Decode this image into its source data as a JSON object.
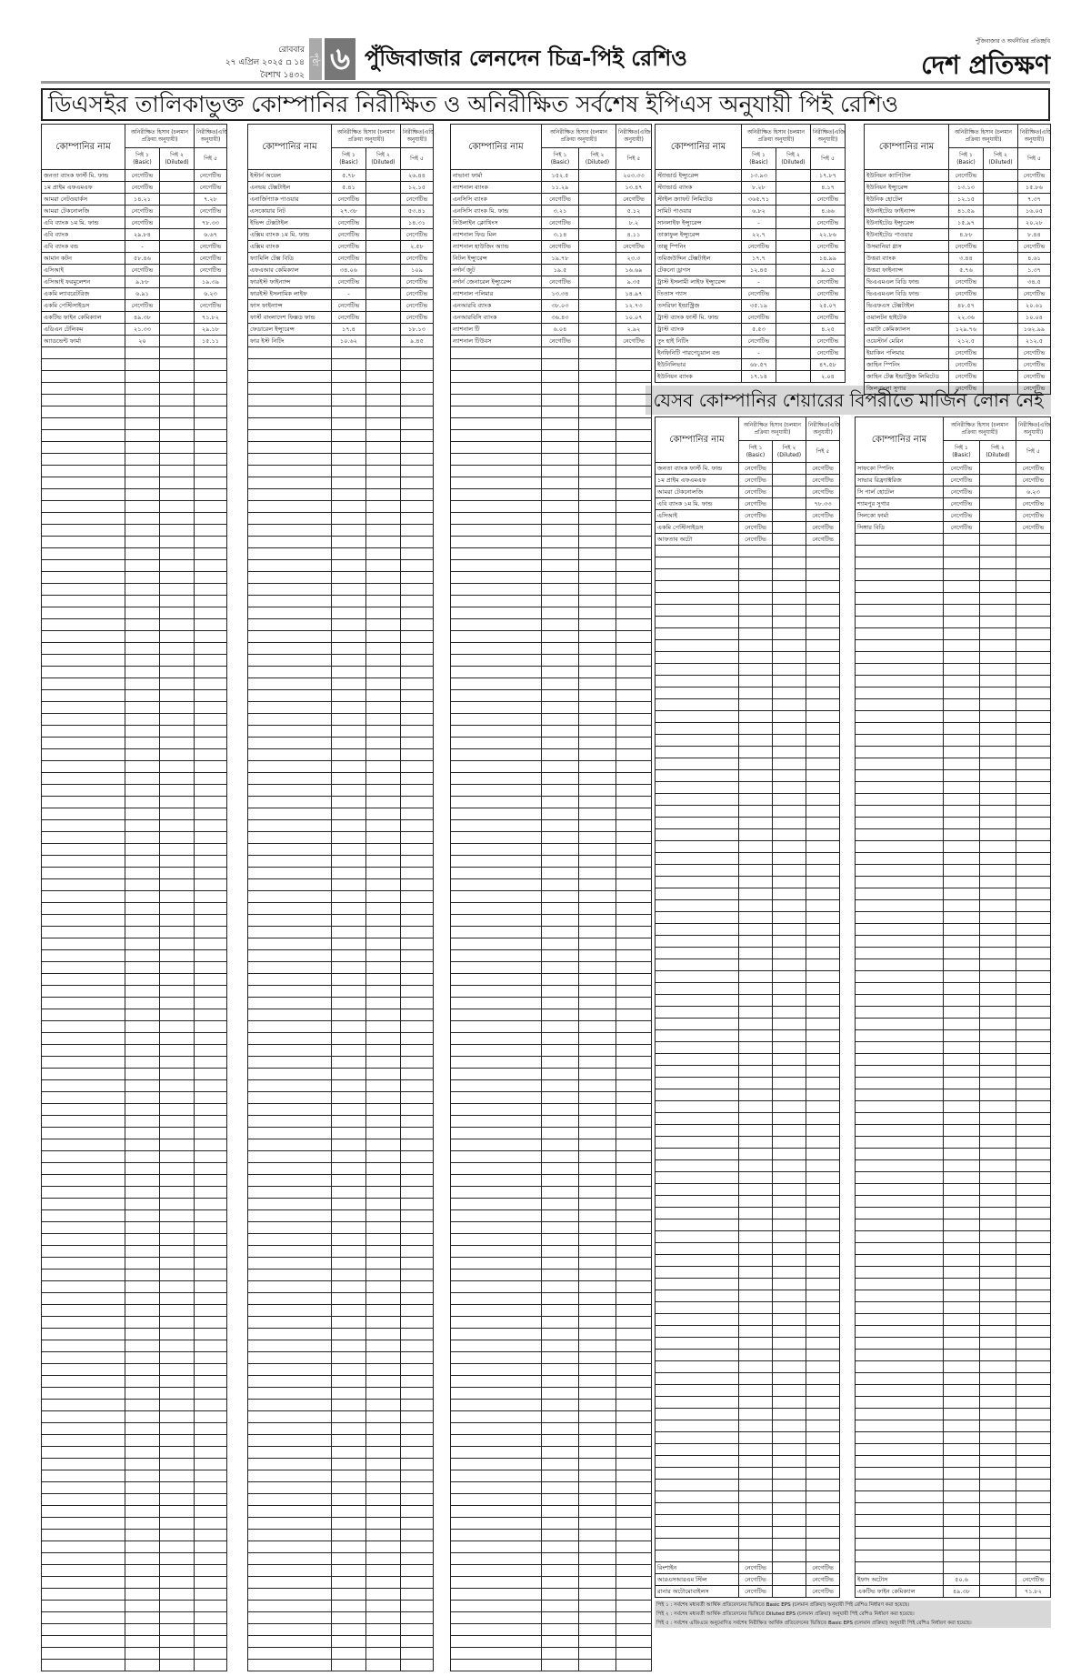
{
  "header": {
    "day": "রোববার",
    "date": "২৭ এপ্রিল ২০২৫ ▫ ১৪ বৈশাখ ১৪৩২",
    "page_word": "পৃষ্ঠা",
    "page_number": "৬",
    "section_title": "পুঁজিবাজার লেনদেন চিত্র-পিই রেশিও",
    "logo": "দেশ প্রতিক্ষণ",
    "tagline": "পুঁজিবাজার ও অর্থনীতির প্রতিচ্ছবি"
  },
  "main_title": "ডিএসইর তালিকাভুক্ত কোম্পানির নিরীক্ষিত ও অনিরীক্ষিত সর্বশেষ ইপিএস অনুযায়ী পিই রেশিও",
  "margin_title": "যেসব কোম্পানির শেয়ারের বিপরীতে মার্জিন লোন নেই",
  "table_header": {
    "company": "কোম্পানির নাম",
    "unaudited": "অনিরীক্ষিত হিসাব (চলমান প্রক্রিয়া অনুযায়ী)",
    "audited": "নিরীক্ষিত(এজিএম অনুযায়ী)",
    "pe1": "পিই ১ (Basic)",
    "pe2": "পিই ২ (Diluted)",
    "pe5": "পিই ৫"
  },
  "tables": [
    {
      "rows": [
        [
          "জনতা ব্যাংক ফার্স্ট মি. ফান্ড",
          "নেগেটিভ",
          "",
          "নেগেটিভ"
        ],
        [
          "১ম প্রাইম এফএমএফ",
          "নেগেটিভ",
          "",
          "নেগেটিভ"
        ],
        [
          "আমরা নেটওয়ার্কস",
          "১৪.২১",
          "",
          "৭.২৮"
        ],
        [
          "আমরা টেকনোলজি",
          "নেগেটিভ",
          "",
          "নেগেটিভ"
        ],
        [
          "এবি ব্যাংক ১ম মি. ফান্ড",
          "নেগেটিভ",
          "",
          "৭৮.৩৩"
        ],
        [
          "এবি ব্যাংক",
          "২৯.৮৪",
          "",
          "৬.৬৭"
        ],
        [
          "এবি ব্যাংক বন্ড",
          "-",
          "",
          "নেগেটিভ"
        ],
        [
          "আমান কটন",
          "৫৮.৪৬",
          "",
          "নেগেটিভ"
        ],
        [
          "এসিআই",
          "নেগেটিভ",
          "",
          "নেগেটিভ"
        ],
        [
          "এসিআই ফরমুলেশন",
          "৯.৮৮",
          "",
          "১৯.৩৯"
        ],
        [
          "একমি ল্যাবরেটরিজ",
          "৬.৯১",
          "",
          "৬.২৩"
        ],
        [
          "একমি পেস্টিসাইডস",
          "নেগেটিভ",
          "",
          "নেগেটিভ"
        ],
        [
          "একটিভ ফাইন কেমিক্যাল",
          "৪৯.৩৮",
          "",
          "৭১.৮২"
        ],
        [
          "এডিএন টেলিকম",
          "২১.৩৩",
          "",
          "২৯.১৮"
        ],
        [
          "অ্যাডভেন্ট ফার্মা",
          "২০",
          "",
          "১৫.১১"
        ]
      ],
      "tail": []
    },
    {
      "rows": [
        [
          "ইস্টার্ন অয়েল",
          "৫.৭৮",
          "",
          "২৬.৪৪"
        ],
        [
          "এনভয় টেক্সটাইল",
          "৫.৪১",
          "",
          "১২.১৫"
        ],
        [
          "এনার্জিপ্যাক পাওয়ার",
          "নেগেটিভ",
          "",
          "নেগেটিভ"
        ],
        [
          "এসকোয়ার নিট",
          "২৭.৩৮",
          "",
          "৫৩.৪১"
        ],
        [
          "ইভিন্স টেক্সটাইল",
          "নেগেটিভ",
          "",
          "১৪.৩১"
        ],
        [
          "এক্সিম ব্যাংক ১ম মি. ফান্ড",
          "নেগেটিভ",
          "",
          "নেগেটিভ"
        ],
        [
          "এক্সিম ব্যাংক",
          "নেগেটিভ",
          "",
          "২.৫৮"
        ],
        [
          "ফ্যামিলি টেক্স বিডি",
          "নেগেটিভ",
          "",
          "নেগেটিভ"
        ],
        [
          "এফএআর কেমিক্যাল",
          "৩৪.০৬",
          "",
          "১০৯"
        ],
        [
          "ফারইস্ট ফাইন্যান্স",
          "নেগেটিভ",
          "",
          "নেগেটিভ"
        ],
        [
          "ফারইস্ট ইসলামিক লাইফ",
          "-",
          "",
          "নেগেটিভ"
        ],
        [
          "ফাস ফাইন্যান্স",
          "নেগেটিভ",
          "",
          "নেগেটিভ"
        ],
        [
          "ফার্স্ট বাংলাদেশ ফিক্সড ফান্ড",
          "নেগেটিভ",
          "",
          "নেগেটিভ"
        ],
        [
          "ফেডারেল ইন্স্যুরেন্স",
          "১৭.৪",
          "",
          "১৮.১৩"
        ],
        [
          "ফার ইস্ট নিটিং",
          "১০.৬২",
          "",
          "৯.৪৫"
        ]
      ],
      "tail": []
    },
    {
      "rows": [
        [
          "নাভানা ফার্মা",
          "১৫২.৫",
          "",
          "২০৩.৩৩"
        ],
        [
          "ন্যাশনাল ব্যাংক",
          "১১.২৯",
          "",
          "১৩.৪৭"
        ],
        [
          "এনসিসি ব্যাংক",
          "নেগেটিভ",
          "",
          "নেগেটিভ"
        ],
        [
          "এনসিসি ব্যাংক মি. ফান্ড",
          "৩.২১",
          "",
          "৫.১২"
        ],
        [
          "নিউলাইন ক্লোথিংস",
          "নেগেটিভ",
          "",
          "৮.২"
        ],
        [
          "ন্যাশনাল ফিড মিল",
          "৩.১৪",
          "",
          "৪.১১"
        ],
        [
          "ন্যাশনাল হাউজিং অ্যান্ড",
          "নেগেটিভ",
          "",
          "নেগেটিভ"
        ],
        [
          "নিটল ইন্স্যুরেন্স",
          "১৯.৭৮",
          "",
          "২৩.৩"
        ],
        [
          "নর্দার্ন জুট",
          "১৯.৫",
          "",
          "১৬.৬৯"
        ],
        [
          "নর্দার্ন জেনারেল ইন্স্যুরেন্স",
          "নেগেটিভ",
          "",
          "৯.৩৫"
        ],
        [
          "ন্যাশনাল পলিমার",
          "১৩.৩৪",
          "",
          "১৪.৯৭"
        ],
        [
          "এনআরবি ব্যাংক",
          "৩৮.০৩",
          "",
          "১২.৭৩"
        ],
        [
          "এনআরবিসি ব্যাংক",
          "৩৬.৪৩",
          "",
          "১০.০৭"
        ],
        [
          "ন্যাশনাল টি",
          "৬.০৪",
          "",
          "২.৯২"
        ],
        [
          "ন্যাশনাল টিউবস",
          "নেগেটিভ",
          "",
          "নেগেটিভ"
        ]
      ],
      "tail": []
    },
    {
      "rows": [
        [
          "স্ট্যান্ডার্ড ইন্স্যুরেন্স",
          "১৩.৯৩",
          "",
          "১৭.৮৭"
        ],
        [
          "স্ট্যান্ডার্ড ব্যাংক",
          "৮.২৮",
          "",
          "৪.১৭"
        ],
        [
          "স্টাইল ক্র্যাফট লিমিটেড",
          "৩৬৫.৭১",
          "",
          "নেগেটিভ"
        ],
        [
          "সামিট পাওয়ার",
          "৬.৮২",
          "",
          "৪.৬৬"
        ],
        [
          "সানলাইফ ইন্স্যুরেন্স",
          "-",
          "",
          "নেগেটিভ"
        ],
        [
          "তাকাফুল ইন্স্যুরেন্স",
          "২২.৭",
          "",
          "২২.৮৬"
        ],
        [
          "তাল্লু স্পিনিং",
          "নেগেটিভ",
          "",
          "নেগেটিভ"
        ],
        [
          "তমিজউদ্দিন টেক্সটাইল",
          "১৭.৭",
          "",
          "১৪.৯৯"
        ],
        [
          "টেকনো ড্রাগস",
          "১২.৪৫",
          "",
          "৯.১৫"
        ],
        [
          "ট্রাস্ট ইসলামী লাইফ ইন্স্যুরেন্স",
          "-",
          "",
          "নেগেটিভ"
        ],
        [
          "তিতাস গ্যাস",
          "নেগেটিভ",
          "",
          "নেগেটিভ"
        ],
        [
          "তসরিফা ইন্ডাস্ট্রিজ",
          "৩৫.১৯",
          "",
          "২৫.০৭"
        ],
        [
          "ট্রাস্ট ব্যাংক ফার্স্ট মি. ফান্ড",
          "নেগেটিভ",
          "",
          "নেগেটিভ"
        ],
        [
          "ট্রাস্ট ব্যাংক",
          "৫.৫৩",
          "",
          "৪.২৫"
        ],
        [
          "তুং হাই নিটিং",
          "নেগেটিভ",
          "",
          "নেগেটিভ"
        ],
        [
          "ইনফিনিটি পারপেচুয়াল বন্ড",
          "-",
          "",
          "নেগেটিভ"
        ],
        [
          "ইউনিলিভার",
          "৬৮.৫৭",
          "",
          "৪৭.৫৮"
        ],
        [
          "ইউনিয়ন ব্যাংক",
          "১৭.১৪",
          "",
          "২.০৪"
        ]
      ],
      "tail": []
    },
    {
      "rows": [
        [
          "ইউনিয়ন ক্যাপিটাল",
          "নেগেটিভ",
          "",
          "নেগেটিভ"
        ],
        [
          "ইউনিয়ন ইন্স্যুরেন্স",
          "১৩.১৩",
          "",
          "১৫.৮৬"
        ],
        [
          "ইউনিক হোটেল",
          "১২.১৫",
          "",
          "৭.৩৭"
        ],
        [
          "ইউনাইটেড ফাইন্যান্স",
          "৪১.৫৯",
          "",
          "১৬.০৫"
        ],
        [
          "ইউনাইটেড ইন্স্যুরেন্স",
          "১৫.৯৭",
          "",
          "২০.২৮"
        ],
        [
          "ইউনাইটেড পাওয়ার",
          "৪.৮৮",
          "",
          "৮.৪৪"
        ],
        [
          "উসমানিয়া গ্লাস",
          "নেগেটিভ",
          "",
          "নেগেটিভ"
        ],
        [
          "উত্তরা ব্যাংক",
          "৩.৪৪",
          "",
          "৪.৬১"
        ],
        [
          "উত্তরা ফাইন্যান্স",
          "৫.৭৬",
          "",
          "১.৩৭"
        ],
        [
          "ভিএএমএল বিডি ফান্ড",
          "নেগেটিভ",
          "",
          "৩৪.৫"
        ],
        [
          "ভিএএমএল বিডি ফান্ড",
          "নেগেটিভ",
          "",
          "নেগেটিভ"
        ],
        [
          "ভিএফএস টেক্সটাইল",
          "৪৮.৫৭",
          "",
          "২০.৬১"
        ],
        [
          "ওয়ালটন হাইটেক",
          "২২.৩৬",
          "",
          "১০.০৪"
        ],
        [
          "ওয়াটা কেমিক্যালস",
          "১২৯.৭৬",
          "",
          "১৬২.৯৯"
        ],
        [
          "ওয়েস্টার্ন মেরিন",
          "২১২.৫",
          "",
          "২১২.৫"
        ],
        [
          "ইয়াকিন পলিমার",
          "নেগেটিভ",
          "",
          "নেগেটিভ"
        ],
        [
          "জাহিন স্পিনিং",
          "নেগেটিভ",
          "",
          "নেগেটিভ"
        ],
        [
          "জাহিন টেক্স ইন্ডাস্ট্রিজ লিমিটেড",
          "নেগেটিভ",
          "",
          "নেগেটিভ"
        ],
        [
          "জিলবাংলা সুগার",
          "নেগেটিভ",
          "",
          "নেগেটিভ"
        ]
      ],
      "tail": []
    },
    {
      "rows": [
        [
          "জনতা ব্যাংক ফার্স্ট মি. ফান্ড",
          "নেগেটিভ",
          "",
          "নেগেটিভ"
        ],
        [
          "১ম প্রাইম এফএমএফ",
          "নেগেটিভ",
          "",
          "নেগেটিভ"
        ],
        [
          "আমরা টেকনোলজি",
          "নেগেটিভ",
          "",
          "নেগেটিভ"
        ],
        [
          "এবি ব্যাংক ১ম মি. ফান্ড",
          "নেগেটিভ",
          "",
          "৭৮.৩৩"
        ],
        [
          "এসিআই",
          "নেগেটিভ",
          "",
          "নেগেটিভ"
        ],
        [
          "একমি পেস্টিসাইডস",
          "নেগেটিভ",
          "",
          "নেগেটিভ"
        ],
        [
          "আফতাব অটো",
          "নেগেটিভ",
          "",
          "নেগেটিভ"
        ]
      ],
      "tail": [
        [
          "রিংশাইন",
          "নেগেটিভ",
          "",
          "নেগেটিভ"
        ],
        [
          "আরএসআরএম স্টিল",
          "নেগেটিভ",
          "",
          "নেগেটিভ"
        ],
        [
          "রানার অটোমোবাইলস",
          "নেগেটিভ",
          "",
          "নেগেটিভ"
        ]
      ]
    },
    {
      "rows": [
        [
          "সাফকো স্পিনিং",
          "নেগেটিভ",
          "",
          "নেগেটিভ"
        ],
        [
          "সাভার রিফ্র্যাক্টরিজ",
          "নেগেটিভ",
          "",
          "নেগেটিভ"
        ],
        [
          "সি পার্ল হোটেল",
          "নেগেটিভ",
          "",
          "৬.২৩"
        ],
        [
          "শ্যামপুর সুগার",
          "নেগেটিভ",
          "",
          "নেগেটিভ"
        ],
        [
          "সিলকো ফার্মা",
          "নেগেটিভ",
          "",
          "নেগেটিভ"
        ],
        [
          "সিঙ্গার বিডি",
          "নেগেটিভ",
          "",
          "নেগেটিভ"
        ]
      ],
      "tail": [
        [
          "ইফাদ অটোস",
          "৫০.৬",
          "",
          "নেগেটিভ"
        ],
        [
          "একটিভ ফাইন কেমিক্যাল",
          "৪৯.৩৮",
          "",
          "৭১.৮২"
        ]
      ]
    }
  ],
  "notes": [
    "পিই ১ : সর্বশেষ মধ্যবর্তী আর্থিক প্রতিবেদনের ভিত্তিতে Basic EPS (চলমান প্রক্রিয়া) অনুযায়ী পিই রেশিও নির্ধারণ করা হয়েছে।",
    "পিই ২ : সর্বশেষ মধ্যবর্তী আর্থিক প্রতিবেদনের ভিত্তিতে Diluted EPS (চলমান প্রক্রিয়া) অনুযায়ী পিই রেশিও নির্ধারণ করা হয়েছে।",
    "পিই ৫ : সর্বশেষ এজিএমে অনুমোদিত সর্বশেষ নিরীক্ষিত আর্থিক প্রতিবেদনের ভিত্তিতে Basic EPS (চলমান প্রক্রিয়া) অনুযায়ী পিই রেশিও নির্ধারণ করা হয়েছে।"
  ]
}
